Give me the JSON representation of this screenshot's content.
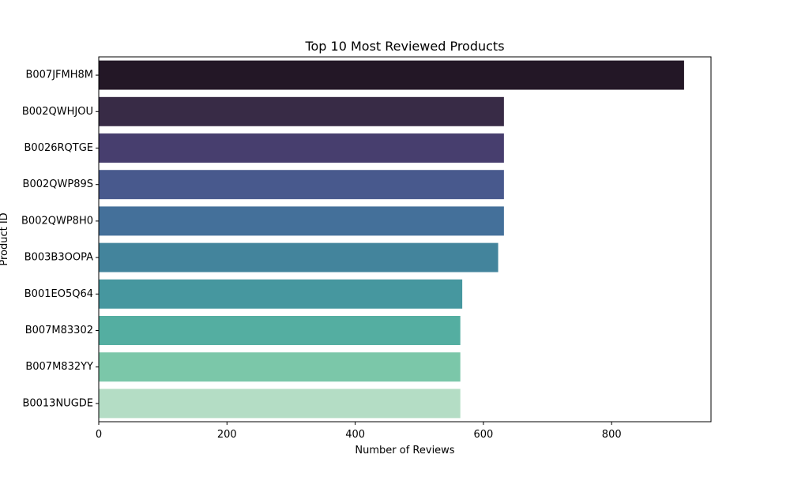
{
  "chart_data": {
    "type": "bar",
    "orientation": "horizontal",
    "title": "Top 10 Most Reviewed Products",
    "xlabel": "Number of Reviews",
    "ylabel": "Product ID",
    "xlim": [
      0,
      955
    ],
    "xticks": [
      0,
      200,
      400,
      600,
      800
    ],
    "categories": [
      "B007JFMH8M",
      "B002QWHJOU",
      "B0026RQTGE",
      "B002QWP89S",
      "B002QWP8H0",
      "B003B3OOPA",
      "B001EO5Q64",
      "B007M83302",
      "B007M832YY",
      "B0013NUGDE"
    ],
    "values": [
      913,
      632,
      632,
      632,
      632,
      623,
      567,
      564,
      564,
      564
    ],
    "colors": [
      "#231726",
      "#382b46",
      "#473e6e",
      "#48598d",
      "#44709a",
      "#43849c",
      "#46979f",
      "#54aea1",
      "#7bc7a9",
      "#b4ddc5"
    ],
    "grid": false,
    "legend": false
  }
}
